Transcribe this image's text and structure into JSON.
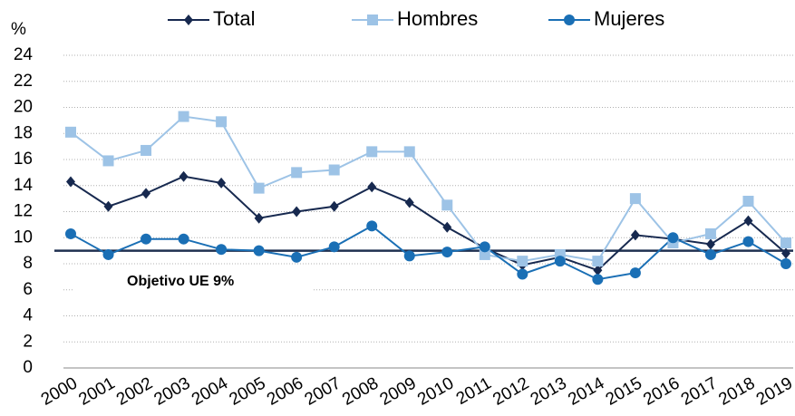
{
  "chart_data": {
    "type": "line",
    "y_label": "%",
    "categories": [
      "2000",
      "2001",
      "2002",
      "2003",
      "2004",
      "2005",
      "2006",
      "2007",
      "2008",
      "2009",
      "2010",
      "2011",
      "2012",
      "2013",
      "2014",
      "2015",
      "2016",
      "2017",
      "2018",
      "2019"
    ],
    "series": [
      {
        "name": "Total",
        "color": "#17294f",
        "marker": "diamond",
        "values": [
          14.3,
          12.4,
          13.4,
          14.7,
          14.2,
          11.5,
          12.0,
          12.4,
          13.9,
          12.7,
          10.8,
          9.2,
          7.9,
          8.5,
          7.5,
          10.2,
          9.9,
          9.5,
          11.3,
          8.8
        ]
      },
      {
        "name": "Hombres",
        "color": "#9dc3e6",
        "marker": "square",
        "values": [
          18.1,
          15.9,
          16.7,
          19.3,
          18.9,
          13.8,
          15.0,
          15.2,
          16.6,
          16.6,
          12.5,
          8.7,
          8.2,
          8.7,
          8.2,
          13.0,
          9.6,
          10.3,
          12.8,
          9.6
        ]
      },
      {
        "name": "Mujeres",
        "color": "#1a6fb5",
        "marker": "circle",
        "values": [
          10.3,
          8.7,
          9.9,
          9.9,
          9.1,
          9.0,
          8.5,
          9.3,
          10.9,
          8.6,
          8.9,
          9.3,
          7.2,
          8.2,
          6.8,
          7.3,
          10.0,
          8.7,
          9.7,
          8.0
        ]
      }
    ],
    "reference_line": {
      "value": 9,
      "label": "Objetivo UE 9%",
      "color": "#1f3050",
      "label_color": "#4472c4"
    },
    "ylim": [
      0,
      24
    ],
    "yticks": [
      0,
      2,
      4,
      6,
      8,
      10,
      12,
      14,
      16,
      18,
      20,
      22,
      24
    ],
    "grid": true
  }
}
